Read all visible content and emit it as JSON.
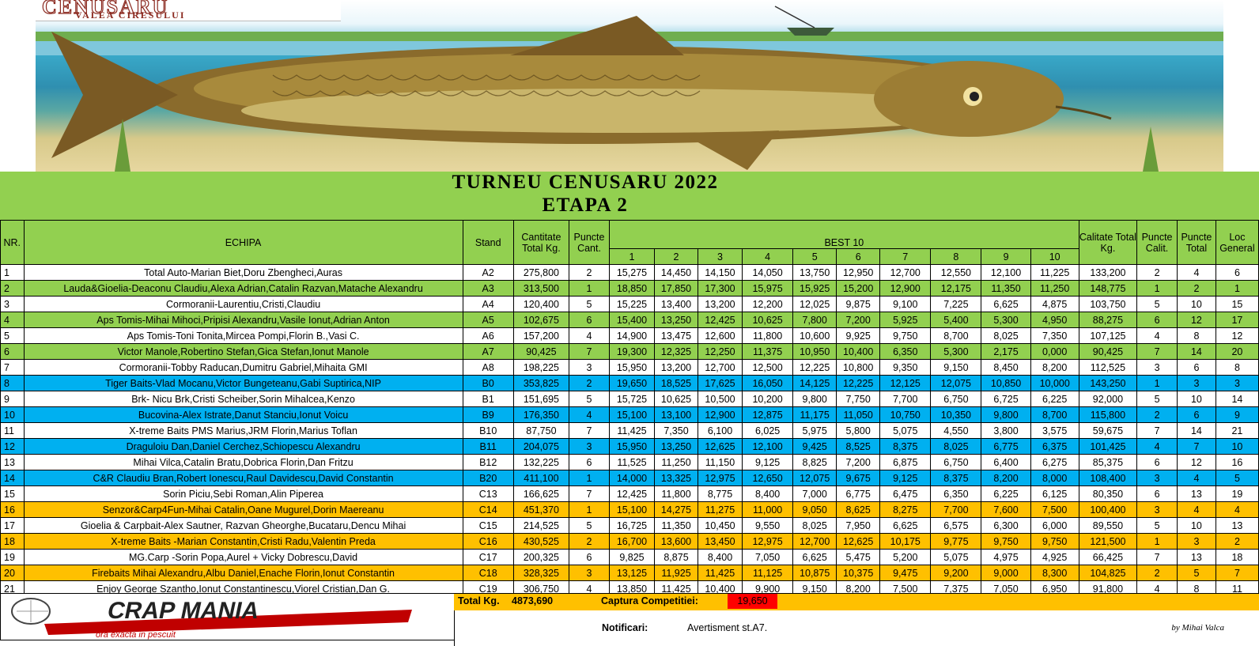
{
  "banner": {
    "logo_title": "CENUSARU",
    "logo_subtitle": "VALEA CIRESULUI"
  },
  "title_line1": "TURNEU CENUSARU 2022",
  "title_line2": "ETAPA 2",
  "headers": {
    "nr": "NR.",
    "echipa": "ECHIPA",
    "stand": "Stand",
    "cantitate": "Cantitate Total Kg.",
    "puncte_cant": "Puncte Cant.",
    "best10": "BEST 10",
    "best_cols": [
      "1",
      "2",
      "3",
      "4",
      "5",
      "6",
      "7",
      "8",
      "9",
      "10"
    ],
    "calitate": "Calitate Total Kg.",
    "puncte_calit": "Puncte Calit.",
    "puncte_total": "Puncte Total",
    "loc_general": "Loc General"
  },
  "rows": [
    {
      "nr": "1",
      "team": "Total Auto-Marian Biet,Doru Zbengheci,Auras",
      "stand": "A2",
      "cant": "275,800",
      "pc": "2",
      "best": [
        "15,275",
        "14,450",
        "14,150",
        "14,050",
        "13,750",
        "12,950",
        "12,700",
        "12,550",
        "12,100",
        "11,225"
      ],
      "calit": "133,200",
      "pq": "2",
      "pt": "4",
      "loc": "6",
      "color": "white"
    },
    {
      "nr": "2",
      "team": "Lauda&Gioelia-Deaconu Claudiu,Alexa Adrian,Catalin Razvan,Matache Alexandru",
      "stand": "A3",
      "cant": "313,500",
      "pc": "1",
      "best": [
        "18,850",
        "17,850",
        "17,300",
        "15,975",
        "15,925",
        "15,200",
        "12,900",
        "12,175",
        "11,350",
        "11,250"
      ],
      "calit": "148,775",
      "pq": "1",
      "pt": "2",
      "loc": "1",
      "color": "green"
    },
    {
      "nr": "3",
      "team": "Cormoranii-Laurentiu,Cristi,Claudiu",
      "stand": "A4",
      "cant": "120,400",
      "pc": "5",
      "best": [
        "15,225",
        "13,400",
        "13,200",
        "12,200",
        "12,025",
        "9,875",
        "9,100",
        "7,225",
        "6,625",
        "4,875"
      ],
      "calit": "103,750",
      "pq": "5",
      "pt": "10",
      "loc": "15",
      "color": "white"
    },
    {
      "nr": "4",
      "team": "Aps Tomis-Mihai Mihoci,Pripisi Alexandru,Vasile Ionut,Adrian Anton",
      "stand": "A5",
      "cant": "102,675",
      "pc": "6",
      "best": [
        "15,400",
        "13,250",
        "12,425",
        "10,625",
        "7,800",
        "7,200",
        "5,925",
        "5,400",
        "5,300",
        "4,950"
      ],
      "calit": "88,275",
      "pq": "6",
      "pt": "12",
      "loc": "17",
      "color": "green"
    },
    {
      "nr": "5",
      "team": "Aps Tomis-Toni Tonita,Mircea Pompi,Florin B.,Vasi C.",
      "stand": "A6",
      "cant": "157,200",
      "pc": "4",
      "best": [
        "14,900",
        "13,475",
        "12,600",
        "11,800",
        "10,600",
        "9,925",
        "9,750",
        "8,700",
        "8,025",
        "7,350"
      ],
      "calit": "107,125",
      "pq": "4",
      "pt": "8",
      "loc": "12",
      "color": "white"
    },
    {
      "nr": "6",
      "team": "Victor Manole,Robertino Stefan,Gica Stefan,Ionut Manole",
      "stand": "A7",
      "cant": "90,425",
      "pc": "7",
      "best": [
        "19,300",
        "12,325",
        "12,250",
        "11,375",
        "10,950",
        "10,400",
        "6,350",
        "5,300",
        "2,175",
        "0,000"
      ],
      "calit": "90,425",
      "pq": "7",
      "pt": "14",
      "loc": "20",
      "color": "green"
    },
    {
      "nr": "7",
      "team": "Cormoranii-Tobby Raducan,Dumitru Gabriel,Mihaita GMI",
      "stand": "A8",
      "cant": "198,225",
      "pc": "3",
      "best": [
        "15,950",
        "13,200",
        "12,700",
        "12,500",
        "12,225",
        "10,800",
        "9,350",
        "9,150",
        "8,450",
        "8,200"
      ],
      "calit": "112,525",
      "pq": "3",
      "pt": "6",
      "loc": "8",
      "color": "white"
    },
    {
      "nr": "8",
      "team": "Tiger Baits-Vlad Mocanu,Victor Bungeteanu,Gabi Suptirica,NIP",
      "stand": "B0",
      "cant": "353,825",
      "pc": "2",
      "best": [
        "19,650",
        "18,525",
        "17,625",
        "16,050",
        "14,125",
        "12,225",
        "12,125",
        "12,075",
        "10,850",
        "10,000"
      ],
      "calit": "143,250",
      "pq": "1",
      "pt": "3",
      "loc": "3",
      "color": "blue"
    },
    {
      "nr": "9",
      "team": "Brk- Nicu Brk,Cristi Scheiber,Sorin Mihalcea,Kenzo",
      "stand": "B1",
      "cant": "151,695",
      "pc": "5",
      "best": [
        "15,725",
        "10,625",
        "10,500",
        "10,200",
        "9,800",
        "7,750",
        "7,700",
        "6,750",
        "6,725",
        "6,225"
      ],
      "calit": "92,000",
      "pq": "5",
      "pt": "10",
      "loc": "14",
      "color": "white"
    },
    {
      "nr": "10",
      "team": "Bucovina-Alex Istrate,Danut Stanciu,Ionut Voicu",
      "stand": "B9",
      "cant": "176,350",
      "pc": "4",
      "best": [
        "15,100",
        "13,100",
        "12,900",
        "12,875",
        "11,175",
        "11,050",
        "10,750",
        "10,350",
        "9,800",
        "8,700"
      ],
      "calit": "115,800",
      "pq": "2",
      "pt": "6",
      "loc": "9",
      "color": "blue"
    },
    {
      "nr": "11",
      "team": "X-treme Baits PMS Marius,JRM Florin,Marius Toflan",
      "stand": "B10",
      "cant": "87,750",
      "pc": "7",
      "best": [
        "11,425",
        "7,350",
        "6,100",
        "6,025",
        "5,975",
        "5,800",
        "5,075",
        "4,550",
        "3,800",
        "3,575"
      ],
      "calit": "59,675",
      "pq": "7",
      "pt": "14",
      "loc": "21",
      "color": "white"
    },
    {
      "nr": "12",
      "team": "Draguloiu Dan,Daniel Cerchez,Schiopescu Alexandru",
      "stand": "B11",
      "cant": "204,075",
      "pc": "3",
      "best": [
        "15,950",
        "13,250",
        "12,625",
        "12,100",
        "9,425",
        "8,525",
        "8,375",
        "8,025",
        "6,775",
        "6,375"
      ],
      "calit": "101,425",
      "pq": "4",
      "pt": "7",
      "loc": "10",
      "color": "blue"
    },
    {
      "nr": "13",
      "team": "Mihai Vilca,Catalin Bratu,Dobrica Florin,Dan Fritzu",
      "stand": "B12",
      "cant": "132,225",
      "pc": "6",
      "best": [
        "11,525",
        "11,250",
        "11,150",
        "9,125",
        "8,825",
        "7,200",
        "6,875",
        "6,750",
        "6,400",
        "6,275"
      ],
      "calit": "85,375",
      "pq": "6",
      "pt": "12",
      "loc": "16",
      "color": "white"
    },
    {
      "nr": "14",
      "team": "C&R Claudiu Bran,Robert Ionescu,Raul Davidescu,David Constantin",
      "stand": "B20",
      "cant": "411,100",
      "pc": "1",
      "best": [
        "14,000",
        "13,325",
        "12,975",
        "12,650",
        "12,075",
        "9,675",
        "9,125",
        "8,375",
        "8,200",
        "8,000"
      ],
      "calit": "108,400",
      "pq": "3",
      "pt": "4",
      "loc": "5",
      "color": "blue"
    },
    {
      "nr": "15",
      "team": "Sorin Piciu,Sebi Roman,Alin Piperea",
      "stand": "C13",
      "cant": "166,625",
      "pc": "7",
      "best": [
        "12,425",
        "11,800",
        "8,775",
        "8,400",
        "7,000",
        "6,775",
        "6,475",
        "6,350",
        "6,225",
        "6,125"
      ],
      "calit": "80,350",
      "pq": "6",
      "pt": "13",
      "loc": "19",
      "color": "white"
    },
    {
      "nr": "16",
      "team": "Senzor&Carp4Fun-Mihai Catalin,Oane Mugurel,Dorin Maereanu",
      "stand": "C14",
      "cant": "451,370",
      "pc": "1",
      "best": [
        "15,100",
        "14,275",
        "11,275",
        "11,000",
        "9,050",
        "8,625",
        "8,275",
        "7,700",
        "7,600",
        "7,500"
      ],
      "calit": "100,400",
      "pq": "3",
      "pt": "4",
      "loc": "4",
      "color": "orange"
    },
    {
      "nr": "17",
      "team": "Gioelia & Carpbait-Alex Sautner, Razvan Gheorghe,Bucataru,Dencu Mihai",
      "stand": "C15",
      "cant": "214,525",
      "pc": "5",
      "best": [
        "16,725",
        "11,350",
        "10,450",
        "9,550",
        "8,025",
        "7,950",
        "6,625",
        "6,575",
        "6,300",
        "6,000"
      ],
      "calit": "89,550",
      "pq": "5",
      "pt": "10",
      "loc": "13",
      "color": "white"
    },
    {
      "nr": "18",
      "team": "X-treme Baits -Marian Constantin,Cristi Radu,Valentin Preda",
      "stand": "C16",
      "cant": "430,525",
      "pc": "2",
      "best": [
        "16,700",
        "13,600",
        "13,450",
        "12,975",
        "12,700",
        "12,625",
        "10,175",
        "9,775",
        "9,750",
        "9,750"
      ],
      "calit": "121,500",
      "pq": "1",
      "pt": "3",
      "loc": "2",
      "color": "orange"
    },
    {
      "nr": "19",
      "team": "MG.Carp -Sorin Popa,Aurel + Vicky Dobrescu,David",
      "stand": "C17",
      "cant": "200,325",
      "pc": "6",
      "best": [
        "9,825",
        "8,875",
        "8,400",
        "7,050",
        "6,625",
        "5,475",
        "5,200",
        "5,075",
        "4,975",
        "4,925"
      ],
      "calit": "66,425",
      "pq": "7",
      "pt": "13",
      "loc": "18",
      "color": "white"
    },
    {
      "nr": "20",
      "team": "Firebaits Mihai Alexandru,Albu Daniel,Enache Florin,Ionut Constantin",
      "stand": "C18",
      "cant": "328,325",
      "pc": "3",
      "best": [
        "13,125",
        "11,925",
        "11,425",
        "11,125",
        "10,875",
        "10,375",
        "9,475",
        "9,200",
        "9,000",
        "8,300"
      ],
      "calit": "104,825",
      "pq": "2",
      "pt": "5",
      "loc": "7",
      "color": "orange"
    },
    {
      "nr": "21",
      "team": "Enjoy George Szantho,Ionut Constantinescu,Viorel Cristian,Dan G.",
      "stand": "C19",
      "cant": "306,750",
      "pc": "4",
      "best": [
        "13,850",
        "11,425",
        "10,400",
        "9,900",
        "9,150",
        "8,200",
        "7,500",
        "7,375",
        "7,050",
        "6,950"
      ],
      "calit": "91,800",
      "pq": "4",
      "pt": "8",
      "loc": "11",
      "color": "white"
    }
  ],
  "footer": {
    "total_label": "Total Kg.",
    "total_value": "4873,690",
    "captura_label": "Captura Competitiei:",
    "captura_value": "19,650",
    "notificari_label": "Notificari:",
    "notificari_value": "Avertisment st.A7.",
    "author": "by Mihai Valca",
    "crap_logo_text": "CRAP MANIA",
    "crap_logo_sub": "ora exacta in pescuit"
  },
  "colors": {
    "green": "#92d050",
    "blue": "#00b0f0",
    "orange": "#ffc000",
    "red": "#ff0000"
  }
}
